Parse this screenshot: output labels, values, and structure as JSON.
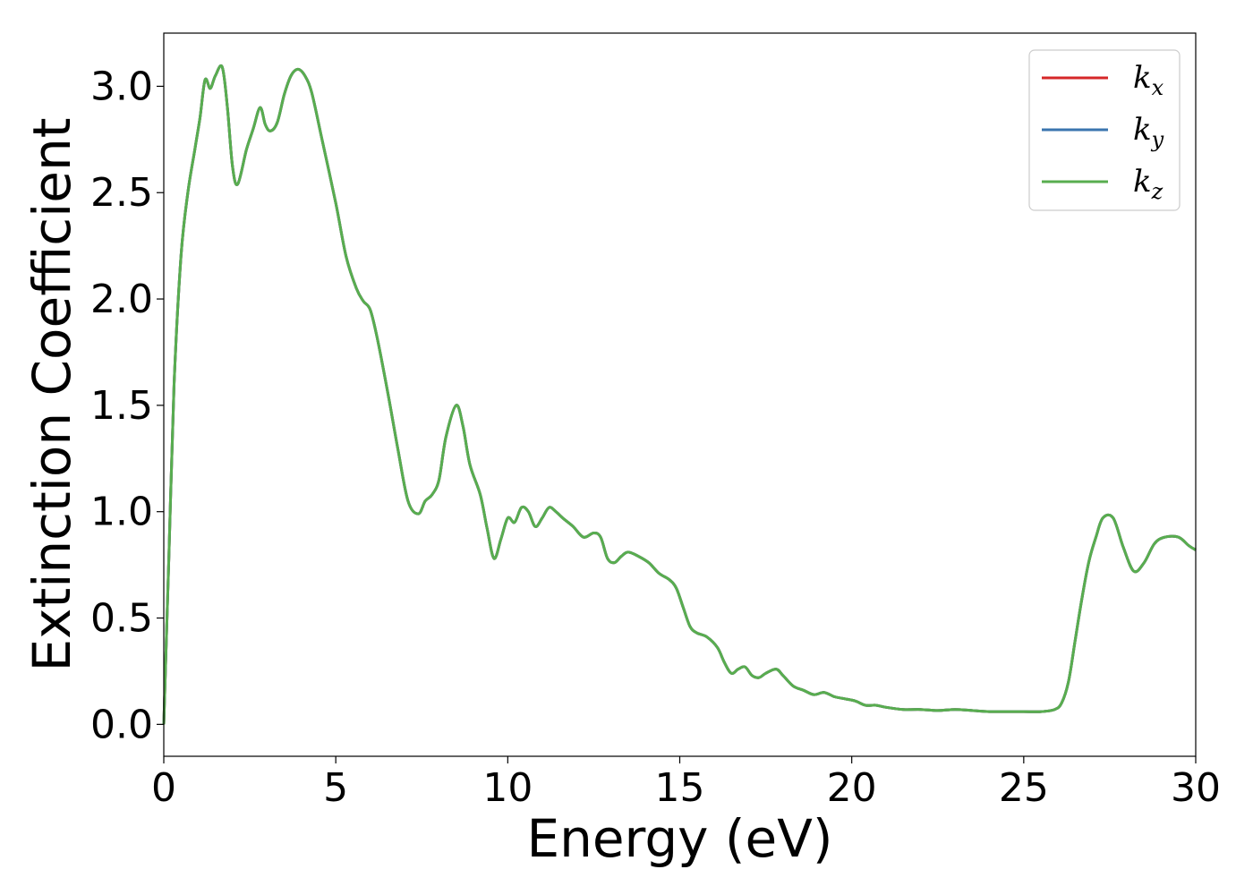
{
  "chart_data": {
    "type": "line",
    "title": "",
    "xlabel": "Energy (eV)",
    "ylabel": "Extinction Coefficient",
    "xlim": [
      0,
      30
    ],
    "ylim": [
      -0.15,
      3.25
    ],
    "xticks": [
      0,
      5,
      10,
      15,
      20,
      25,
      30
    ],
    "xtick_labels": [
      "0",
      "5",
      "10",
      "15",
      "20",
      "25",
      "30"
    ],
    "yticks": [
      0.0,
      0.5,
      1.0,
      1.5,
      2.0,
      2.5,
      3.0
    ],
    "ytick_labels": [
      "0.0",
      "0.5",
      "1.0",
      "1.5",
      "2.0",
      "2.5",
      "3.0"
    ],
    "grid": false,
    "legend_position": "top-right",
    "colors": {
      "kx": "#d62728",
      "ky": "#3b75af",
      "kz": "#58ad4f"
    },
    "x": [
      0,
      0.15,
      0.3,
      0.5,
      0.7,
      0.9,
      1.05,
      1.2,
      1.35,
      1.5,
      1.7,
      1.85,
      2.0,
      2.15,
      2.4,
      2.6,
      2.8,
      2.95,
      3.1,
      3.3,
      3.5,
      3.7,
      3.9,
      4.1,
      4.3,
      4.6,
      5.0,
      5.3,
      5.6,
      5.8,
      6.0,
      6.2,
      6.5,
      6.8,
      7.1,
      7.4,
      7.6,
      7.8,
      8.0,
      8.2,
      8.5,
      8.7,
      8.9,
      9.2,
      9.4,
      9.6,
      9.8,
      10.0,
      10.2,
      10.4,
      10.6,
      10.8,
      11.0,
      11.2,
      11.4,
      11.6,
      11.9,
      12.2,
      12.5,
      12.7,
      12.9,
      13.1,
      13.3,
      13.5,
      13.8,
      14.1,
      14.4,
      14.7,
      14.9,
      15.1,
      15.3,
      15.5,
      15.8,
      16.1,
      16.3,
      16.5,
      16.7,
      16.9,
      17.1,
      17.3,
      17.5,
      17.8,
      18.0,
      18.3,
      18.6,
      18.9,
      19.2,
      19.5,
      19.8,
      20.1,
      20.4,
      20.7,
      21.0,
      21.5,
      22.0,
      22.5,
      23.0,
      23.5,
      24.0,
      24.5,
      25.0,
      25.5,
      25.9,
      26.1,
      26.3,
      26.5,
      26.7,
      26.9,
      27.1,
      27.3,
      27.6,
      27.9,
      28.2,
      28.5,
      28.8,
      29.1,
      29.5,
      29.8,
      30.0
    ],
    "series": [
      {
        "name": "k_x",
        "label_base": "k",
        "label_sub": "x",
        "color": "#d62728"
      },
      {
        "name": "k_y",
        "label_base": "k",
        "label_sub": "y",
        "color": "#3b75af"
      },
      {
        "name": "k_z",
        "label_base": "k",
        "label_sub": "z",
        "color": "#58ad4f"
      }
    ],
    "values": [
      0.0,
      0.8,
      1.6,
      2.2,
      2.5,
      2.7,
      2.85,
      3.03,
      2.99,
      3.05,
      3.09,
      2.9,
      2.62,
      2.54,
      2.7,
      2.8,
      2.9,
      2.82,
      2.79,
      2.83,
      2.96,
      3.05,
      3.08,
      3.05,
      2.97,
      2.75,
      2.45,
      2.2,
      2.05,
      1.99,
      1.95,
      1.82,
      1.57,
      1.3,
      1.05,
      0.99,
      1.05,
      1.08,
      1.15,
      1.35,
      1.5,
      1.4,
      1.22,
      1.08,
      0.92,
      0.78,
      0.87,
      0.97,
      0.95,
      1.02,
      1.0,
      0.93,
      0.97,
      1.02,
      1.0,
      0.97,
      0.93,
      0.88,
      0.9,
      0.88,
      0.78,
      0.76,
      0.79,
      0.81,
      0.79,
      0.76,
      0.71,
      0.68,
      0.64,
      0.55,
      0.46,
      0.43,
      0.41,
      0.36,
      0.29,
      0.24,
      0.26,
      0.27,
      0.23,
      0.22,
      0.24,
      0.26,
      0.23,
      0.18,
      0.16,
      0.14,
      0.15,
      0.13,
      0.12,
      0.11,
      0.09,
      0.09,
      0.08,
      0.07,
      0.07,
      0.065,
      0.07,
      0.065,
      0.06,
      0.06,
      0.06,
      0.06,
      0.07,
      0.1,
      0.2,
      0.4,
      0.6,
      0.77,
      0.88,
      0.97,
      0.97,
      0.83,
      0.72,
      0.76,
      0.85,
      0.88,
      0.88,
      0.84,
      0.82
    ]
  }
}
